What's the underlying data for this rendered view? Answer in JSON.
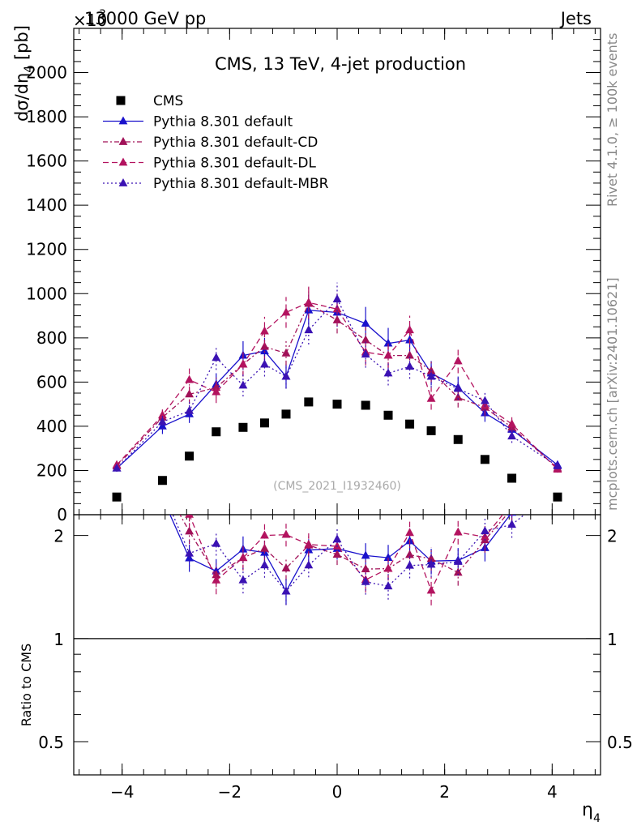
{
  "header": {
    "left": "13000 GeV pp",
    "right": "Jets",
    "exponent_prefix": "×10",
    "exponent_power": "3"
  },
  "side": {
    "rivet": "Rivet 4.1.0, ≥ 100k events",
    "mcplots": "mcplots.cern.ch [arXiv:2401.10621]"
  },
  "chart_data": {
    "type": "scatter",
    "title": "CMS, 13 TeV, 4-jet production",
    "analysis": "(CMS_2021_I1932460)",
    "xlabel": "η",
    "xlabel_sub": "4",
    "ylabel": "dσ/dη",
    "ylabel_sub": "4",
    "ylabel_unit": " [pb]",
    "ratio_ylabel": "Ratio to CMS",
    "xlim": [
      -4.9,
      4.9
    ],
    "ylim": [
      0,
      2200
    ],
    "ratio_ylim": [
      0.4,
      2.3
    ],
    "x_ticks": [
      -4,
      -2,
      0,
      2,
      4
    ],
    "x_tick_labels": [
      "−4",
      "−2",
      "0",
      "2",
      "4"
    ],
    "y_ticks": [
      0,
      200,
      400,
      600,
      800,
      1000,
      1200,
      1400,
      1600,
      1800,
      2000
    ],
    "y_tick_labels": [
      "0",
      "200",
      "400",
      "600",
      "800",
      "1000",
      "1200",
      "1400",
      "1600",
      "1800",
      "2000"
    ],
    "ratio_ticks": [
      0.5,
      1,
      2
    ],
    "ratio_tick_labels": [
      "0.5",
      "1",
      "2"
    ],
    "x": [
      -4.1,
      -3.25,
      -2.75,
      -2.25,
      -1.75,
      -1.35,
      -0.95,
      -0.53,
      0,
      0.53,
      0.95,
      1.35,
      1.75,
      2.25,
      2.75,
      3.25,
      4.1
    ],
    "series": [
      {
        "name": "CMS",
        "color": "#000000",
        "marker": "square",
        "values": [
          80,
          155,
          265,
          375,
          395,
          415,
          455,
          510,
          500,
          495,
          450,
          410,
          380,
          340,
          250,
          165,
          80
        ]
      },
      {
        "name": "Pythia 8.301 default",
        "color": "#1a12cc",
        "marker": "triangle",
        "dash": "",
        "values": [
          210,
          400,
          455,
          590,
          720,
          740,
          625,
          925,
          915,
          865,
          775,
          790,
          640,
          575,
          460,
          385,
          225
        ],
        "errors": [
          15,
          35,
          40,
          50,
          65,
          60,
          55,
          70,
          65,
          75,
          70,
          70,
          55,
          50,
          40,
          35,
          15
        ]
      },
      {
        "name": "Pythia 8.301 default-CD",
        "color": "#a11158",
        "marker": "triangle",
        "dash": "6,3,2,3",
        "values": [
          220,
          440,
          545,
          575,
          680,
          760,
          730,
          955,
          880,
          790,
          720,
          720,
          650,
          530,
          485,
          395,
          210
        ],
        "errors": [
          15,
          35,
          45,
          45,
          55,
          60,
          55,
          70,
          60,
          60,
          55,
          55,
          50,
          45,
          40,
          35,
          15
        ]
      },
      {
        "name": "Pythia 8.301 default-DL",
        "color": "#b3135f",
        "marker": "triangle",
        "dash": "7,4",
        "values": [
          225,
          450,
          610,
          555,
          680,
          830,
          915,
          960,
          930,
          735,
          720,
          835,
          525,
          695,
          495,
          410,
          205
        ],
        "errors": [
          15,
          40,
          55,
          50,
          55,
          65,
          70,
          75,
          70,
          60,
          55,
          65,
          50,
          55,
          40,
          35,
          15
        ]
      },
      {
        "name": "Pythia 8.301 default-MBR",
        "color": "#3b12b3",
        "marker": "triangle",
        "dash": "2,3",
        "values": [
          210,
          420,
          470,
          710,
          585,
          680,
          625,
          835,
          975,
          725,
          640,
          670,
          625,
          570,
          515,
          355,
          220
        ],
        "errors": [
          15,
          35,
          40,
          55,
          50,
          55,
          55,
          65,
          75,
          60,
          55,
          55,
          50,
          50,
          45,
          30,
          15
        ]
      }
    ]
  }
}
